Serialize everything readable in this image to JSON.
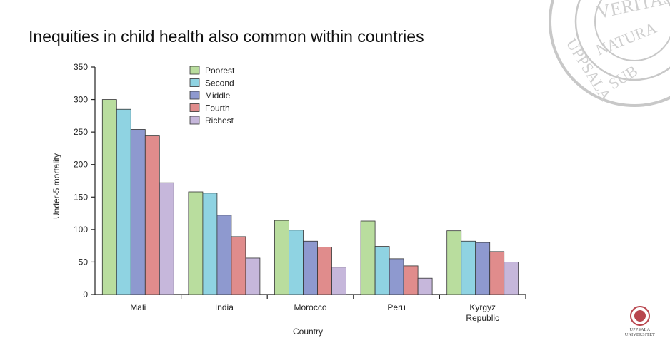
{
  "slide": {
    "title": "Inequities in child health also common within countries"
  },
  "seal": {
    "top_text": "VERITAS",
    "bottom_text": "NATURA",
    "left_text": "UPPSALA",
    "right_text": "SUB"
  },
  "university": {
    "line1": "UPPSALA",
    "line2": "UNIVERSITET"
  },
  "colors": {
    "Poorest": "#b9dd9e",
    "Second": "#8fd3e2",
    "Middle": "#8e99cf",
    "Fourth": "#e08c8c",
    "Richest": "#c6b7db",
    "seal": "#c8c8c8",
    "logo": "#b8454d"
  },
  "chart_data": {
    "type": "bar",
    "title": "",
    "xlabel": "Country",
    "ylabel": "Under-5 mortality",
    "ylim": [
      0,
      350
    ],
    "yticks": [
      0,
      50,
      100,
      150,
      200,
      250,
      300,
      350
    ],
    "grid": false,
    "legend_position": "top-center",
    "categories": [
      "Mali",
      "India",
      "Morocco",
      "Peru",
      "Kyrgyz Republic"
    ],
    "category_lines": [
      [
        "Mali"
      ],
      [
        "India"
      ],
      [
        "Morocco"
      ],
      [
        "Peru"
      ],
      [
        "Kyrgyz",
        "Republic"
      ]
    ],
    "series": [
      {
        "name": "Poorest",
        "values": [
          300,
          158,
          114,
          113,
          98
        ]
      },
      {
        "name": "Second",
        "values": [
          285,
          156,
          99,
          74,
          82
        ]
      },
      {
        "name": "Middle",
        "values": [
          254,
          122,
          82,
          55,
          80
        ]
      },
      {
        "name": "Fourth",
        "values": [
          244,
          89,
          73,
          44,
          66
        ]
      },
      {
        "name": "Richest",
        "values": [
          172,
          56,
          42,
          25,
          50
        ]
      }
    ]
  }
}
